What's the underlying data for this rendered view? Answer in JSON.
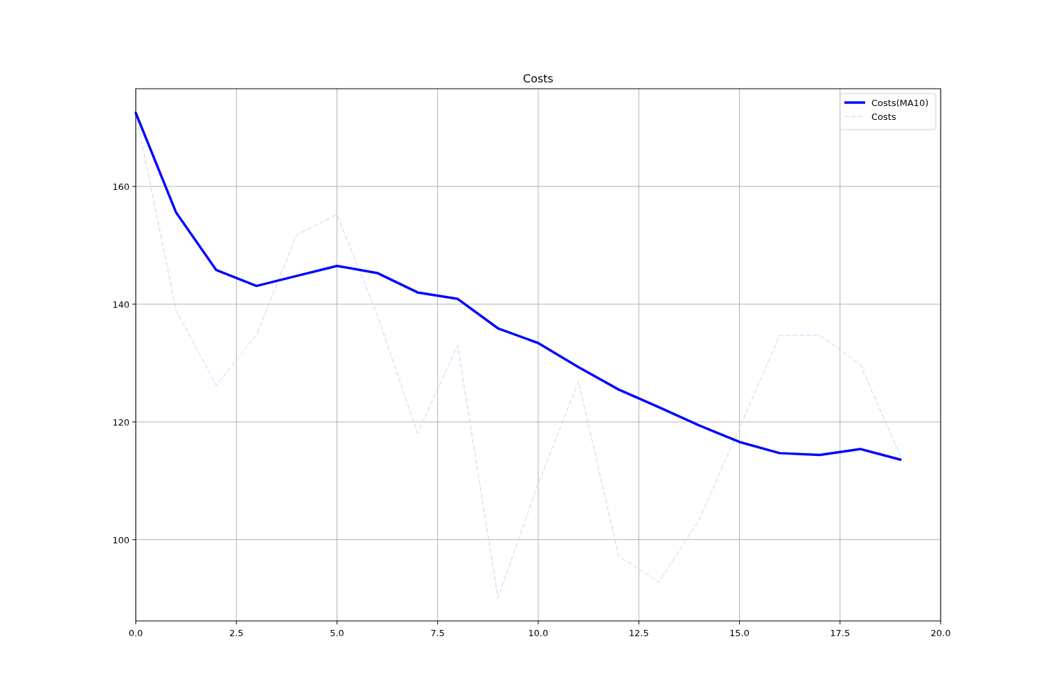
{
  "chart_data": {
    "type": "line",
    "title": "Costs",
    "x": [
      0,
      1,
      2,
      3,
      4,
      5,
      6,
      7,
      8,
      9,
      10,
      11,
      12,
      13,
      14,
      15,
      16,
      17,
      18,
      19
    ],
    "series": [
      {
        "name": "Costs(MA10)",
        "color": "#0000ff",
        "line_style": "solid",
        "values": [
          172.5,
          155.6,
          145.8,
          143.1,
          144.8,
          146.5,
          145.3,
          142.0,
          140.9,
          135.9,
          133.4,
          129.3,
          125.5,
          122.5,
          119.4,
          116.6,
          114.7,
          114.4,
          115.4,
          113.6
        ]
      },
      {
        "name": "Costs",
        "color": "#ccccff",
        "line_style": "dashed",
        "values": [
          172.5,
          139,
          126.2,
          134.8,
          151.8,
          155.2,
          138.2,
          118.1,
          133,
          90.1,
          109.5,
          126.9,
          97.2,
          92.8,
          103.4,
          118.9,
          134.7,
          134.7,
          129.8,
          114.2
        ]
      }
    ],
    "xlim": [
      0,
      20
    ],
    "xticks": [
      {
        "value": 0,
        "label": "0.0"
      },
      {
        "value": 2.5,
        "label": "2.5"
      },
      {
        "value": 5,
        "label": "5.0"
      },
      {
        "value": 7.5,
        "label": "7.5"
      },
      {
        "value": 10,
        "label": "10.0"
      },
      {
        "value": 12.5,
        "label": "12.5"
      },
      {
        "value": 15,
        "label": "15.0"
      },
      {
        "value": 17.5,
        "label": "17.5"
      },
      {
        "value": 20,
        "label": "20.0"
      }
    ],
    "ylim": [
      86.2,
      176.6
    ],
    "yticks": [
      100,
      120,
      140,
      160
    ],
    "grid": true,
    "legend": "top right"
  }
}
